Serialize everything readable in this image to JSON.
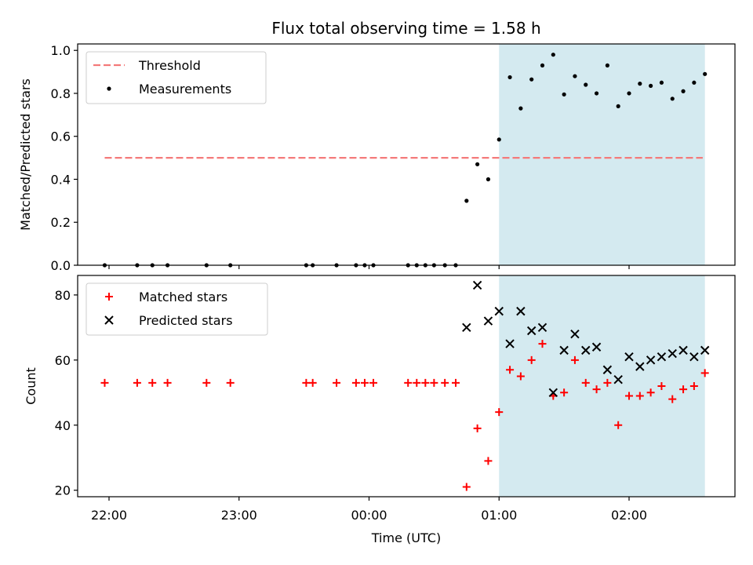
{
  "chart_data": {
    "title": "Flux total observing time = 1.58 h",
    "xlabel": "Time (UTC)",
    "x_ticks": [
      "22:00",
      "23:00",
      "00:00",
      "01:00",
      "02:00"
    ],
    "shaded_region": {
      "start": "01:00",
      "end": "02:35",
      "color": "#d4eaf0"
    },
    "panels": [
      {
        "type": "scatter",
        "ylabel": "Matched/Predicted stars",
        "ylim": [
          0,
          1.03
        ],
        "y_ticks": [
          "0.0",
          "0.2",
          "0.4",
          "0.6",
          "0.8",
          "1.0"
        ],
        "legend_position": "top-left",
        "threshold": {
          "name": "Threshold",
          "y": 0.5,
          "x_start": "21:58",
          "x_end": "02:34",
          "color": "#f47a7a"
        },
        "series": [
          {
            "name": "Measurements",
            "color": "#000000",
            "marker": "dot",
            "points": [
              [
                "21:58",
                0
              ],
              [
                "22:13",
                0
              ],
              [
                "22:20",
                0
              ],
              [
                "22:27",
                0
              ],
              [
                "22:45",
                0
              ],
              [
                "22:56",
                0
              ],
              [
                "23:31",
                0
              ],
              [
                "23:34",
                0
              ],
              [
                "23:45",
                0
              ],
              [
                "23:54",
                0
              ],
              [
                "23:58",
                0
              ],
              [
                "00:02",
                0
              ],
              [
                "00:18",
                0
              ],
              [
                "00:22",
                0
              ],
              [
                "00:26",
                0
              ],
              [
                "00:30",
                0
              ],
              [
                "00:35",
                0
              ],
              [
                "00:40",
                0
              ],
              [
                "00:45",
                0.3
              ],
              [
                "00:50",
                0.47
              ],
              [
                "00:55",
                0.4
              ],
              [
                "01:00",
                0.585
              ],
              [
                "01:05",
                0.875
              ],
              [
                "01:10",
                0.73
              ],
              [
                "01:15",
                0.865
              ],
              [
                "01:20",
                0.93
              ],
              [
                "01:25",
                0.98
              ],
              [
                "01:30",
                0.795
              ],
              [
                "01:35",
                0.88
              ],
              [
                "01:40",
                0.84
              ],
              [
                "01:45",
                0.8
              ],
              [
                "01:50",
                0.93
              ],
              [
                "01:55",
                0.74
              ],
              [
                "02:00",
                0.8
              ],
              [
                "02:05",
                0.845
              ],
              [
                "02:10",
                0.835
              ],
              [
                "02:15",
                0.85
              ],
              [
                "02:20",
                0.775
              ],
              [
                "02:25",
                0.81
              ],
              [
                "02:30",
                0.85
              ],
              [
                "02:35",
                0.89
              ]
            ]
          }
        ]
      },
      {
        "type": "scatter",
        "ylabel": "Count",
        "ylim": [
          18,
          86
        ],
        "y_ticks": [
          "20",
          "40",
          "60",
          "80"
        ],
        "legend_position": "top-left",
        "series": [
          {
            "name": "Matched stars",
            "color": "#ff0000",
            "marker": "plus",
            "points": [
              [
                "21:58",
                53
              ],
              [
                "22:13",
                53
              ],
              [
                "22:20",
                53
              ],
              [
                "22:27",
                53
              ],
              [
                "22:45",
                53
              ],
              [
                "22:56",
                53
              ],
              [
                "23:31",
                53
              ],
              [
                "23:34",
                53
              ],
              [
                "23:45",
                53
              ],
              [
                "23:54",
                53
              ],
              [
                "23:58",
                53
              ],
              [
                "00:02",
                53
              ],
              [
                "00:18",
                53
              ],
              [
                "00:22",
                53
              ],
              [
                "00:26",
                53
              ],
              [
                "00:30",
                53
              ],
              [
                "00:35",
                53
              ],
              [
                "00:40",
                53
              ],
              [
                "00:45",
                21
              ],
              [
                "00:50",
                39
              ],
              [
                "00:55",
                29
              ],
              [
                "01:00",
                44
              ],
              [
                "01:05",
                57
              ],
              [
                "01:10",
                55
              ],
              [
                "01:15",
                60
              ],
              [
                "01:20",
                65
              ],
              [
                "01:25",
                49
              ],
              [
                "01:30",
                50
              ],
              [
                "01:35",
                60
              ],
              [
                "01:40",
                53
              ],
              [
                "01:45",
                51
              ],
              [
                "01:50",
                53
              ],
              [
                "01:55",
                40
              ],
              [
                "02:00",
                49
              ],
              [
                "02:05",
                49
              ],
              [
                "02:10",
                50
              ],
              [
                "02:15",
                52
              ],
              [
                "02:20",
                48
              ],
              [
                "02:25",
                51
              ],
              [
                "02:30",
                52
              ],
              [
                "02:35",
                56
              ]
            ]
          },
          {
            "name": "Predicted stars",
            "color": "#000000",
            "marker": "x",
            "points": [
              [
                "00:45",
                70
              ],
              [
                "00:50",
                83
              ],
              [
                "00:55",
                72
              ],
              [
                "01:00",
                75
              ],
              [
                "01:05",
                65
              ],
              [
                "01:10",
                75
              ],
              [
                "01:15",
                69
              ],
              [
                "01:20",
                70
              ],
              [
                "01:25",
                50
              ],
              [
                "01:30",
                63
              ],
              [
                "01:35",
                68
              ],
              [
                "01:40",
                63
              ],
              [
                "01:45",
                64
              ],
              [
                "01:50",
                57
              ],
              [
                "01:55",
                54
              ],
              [
                "02:00",
                61
              ],
              [
                "02:05",
                58
              ],
              [
                "02:10",
                60
              ],
              [
                "02:15",
                61
              ],
              [
                "02:20",
                62
              ],
              [
                "02:25",
                63
              ],
              [
                "02:30",
                61
              ],
              [
                "02:35",
                63
              ]
            ]
          }
        ]
      }
    ]
  }
}
